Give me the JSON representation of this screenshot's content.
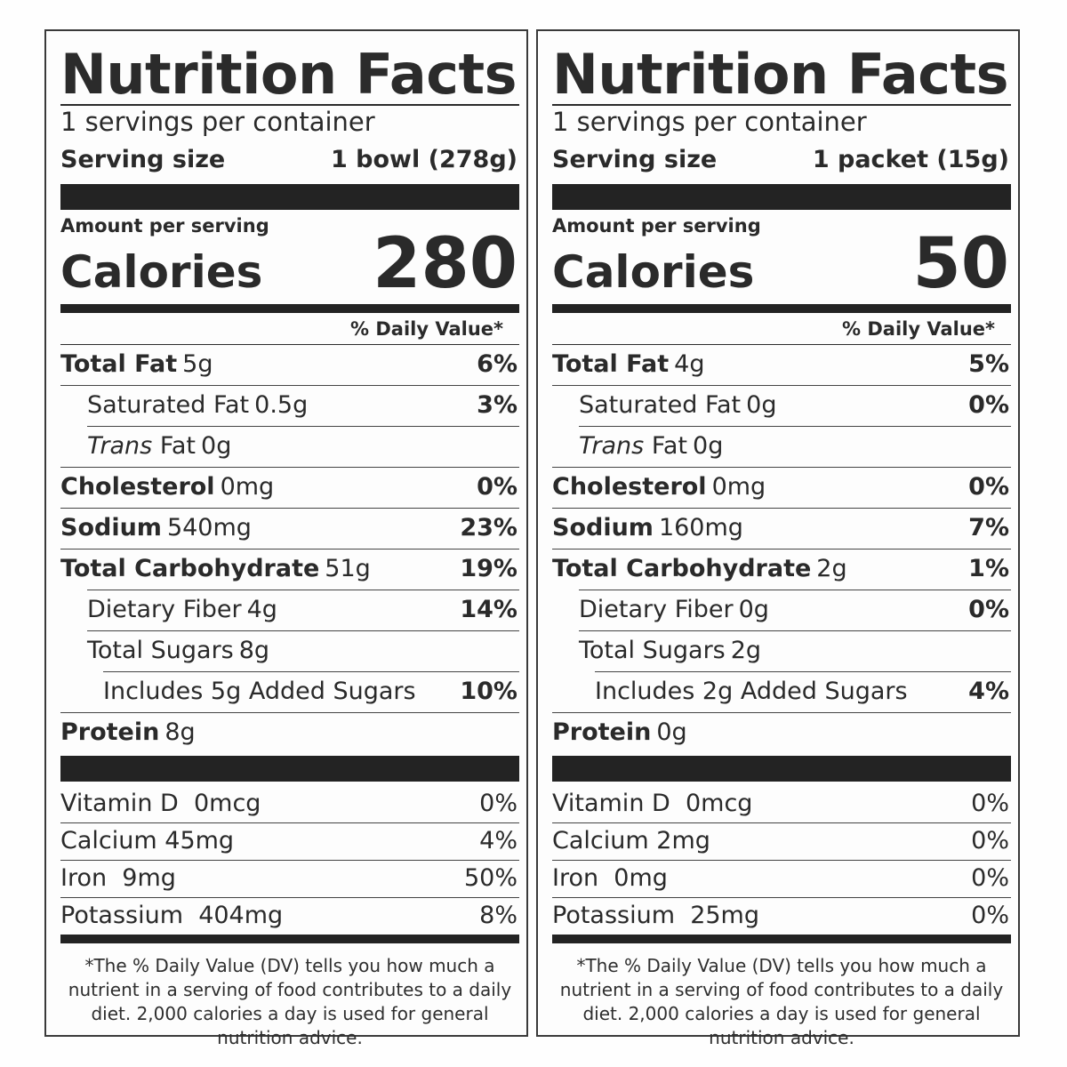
{
  "labels": [
    {
      "title": "Nutrition Facts",
      "servings_per_container": "1 servings per container",
      "serving_size_label": "Serving size",
      "serving_size_value": "1 bowl (278g)",
      "amount_per_serving": "Amount per serving",
      "calories_label": "Calories",
      "calories_value": "280",
      "dv_header": "% Daily Value*",
      "nutrients": [
        {
          "name": "Total Fat",
          "amount": "5g",
          "dv": "6%"
        },
        {
          "name": "Saturated Fat",
          "amount": "0.5g",
          "dv": "3%"
        },
        {
          "name_italic": "Trans",
          "name": "Fat",
          "amount": "0g",
          "dv": ""
        },
        {
          "name": "Cholesterol",
          "amount": "0mg",
          "dv": "0%"
        },
        {
          "name": "Sodium",
          "amount": "540mg",
          "dv": "23%"
        },
        {
          "name": "Total Carbohydrate",
          "amount": "51g",
          "dv": "19%"
        },
        {
          "name": "Dietary Fiber",
          "amount": "4g",
          "dv": "14%"
        },
        {
          "name": "Total Sugars",
          "amount": "8g",
          "dv": ""
        },
        {
          "name": "Includes 5g Added Sugars",
          "amount": "",
          "dv": "10%"
        },
        {
          "name": "Protein",
          "amount": "8g",
          "dv": ""
        }
      ],
      "vitamins": [
        {
          "name": "Vitamin D",
          "amount": "0mcg",
          "dv": "0%"
        },
        {
          "name": "Calcium",
          "amount": "45mg",
          "dv": "4%"
        },
        {
          "name": "Iron",
          "amount": "9mg",
          "dv": "50%"
        },
        {
          "name": "Potassium",
          "amount": "404mg",
          "dv": "8%"
        }
      ],
      "footnote": "*The % Daily Value (DV) tells you how much a nutrient in a serving of food contributes to a daily diet. 2,000 calories a day is used for general nutrition advice."
    },
    {
      "title": "Nutrition Facts",
      "servings_per_container": "1 servings per container",
      "serving_size_label": "Serving size",
      "serving_size_value": "1 packet (15g)",
      "amount_per_serving": "Amount per serving",
      "calories_label": "Calories",
      "calories_value": "50",
      "dv_header": "% Daily Value*",
      "nutrients": [
        {
          "name": "Total Fat",
          "amount": "4g",
          "dv": "5%"
        },
        {
          "name": "Saturated Fat",
          "amount": "0g",
          "dv": "0%"
        },
        {
          "name_italic": "Trans",
          "name": "Fat",
          "amount": "0g",
          "dv": ""
        },
        {
          "name": "Cholesterol",
          "amount": "0mg",
          "dv": "0%"
        },
        {
          "name": "Sodium",
          "amount": "160mg",
          "dv": "7%"
        },
        {
          "name": "Total Carbohydrate",
          "amount": "2g",
          "dv": "1%"
        },
        {
          "name": "Dietary Fiber",
          "amount": "0g",
          "dv": "0%"
        },
        {
          "name": "Total Sugars",
          "amount": "2g",
          "dv": ""
        },
        {
          "name": "Includes 2g Added Sugars",
          "amount": "",
          "dv": "4%"
        },
        {
          "name": "Protein",
          "amount": "0g",
          "dv": ""
        }
      ],
      "vitamins": [
        {
          "name": "Vitamin D",
          "amount": "0mcg",
          "dv": "0%"
        },
        {
          "name": "Calcium",
          "amount": "2mg",
          "dv": "0%"
        },
        {
          "name": "Iron",
          "amount": "0mg",
          "dv": "0%"
        },
        {
          "name": "Potassium",
          "amount": "25mg",
          "dv": "0%"
        }
      ],
      "footnote": "*The % Daily Value (DV) tells you how much a nutrient in a serving of food contributes to a daily diet. 2,000 calories a day is used for general nutrition advice."
    }
  ]
}
